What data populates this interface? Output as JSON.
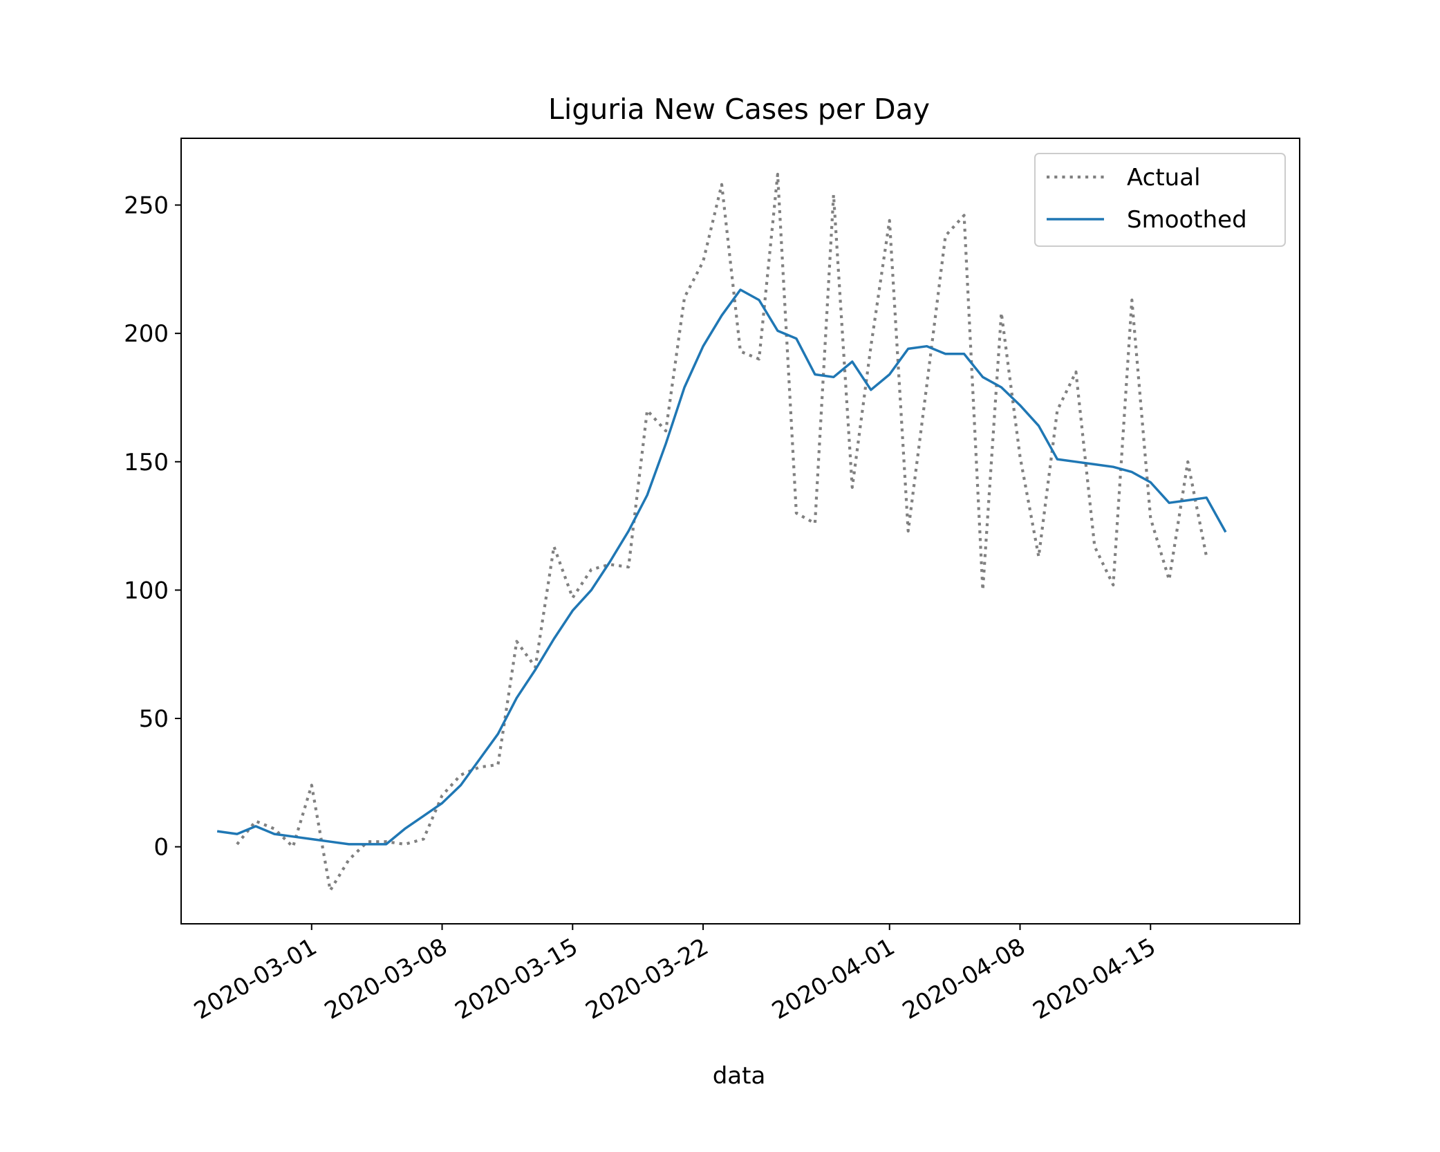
{
  "chart_data": {
    "type": "line",
    "title": "Liguria New Cases per Day",
    "xlabel": "data",
    "ylabel": "",
    "x_type": "date",
    "xlim": [
      "2020-02-23",
      "2020-04-23"
    ],
    "ylim": [
      -30,
      276
    ],
    "y_ticks": [
      0,
      50,
      100,
      150,
      200,
      250
    ],
    "x_ticks": [
      "2020-03-01",
      "2020-03-08",
      "2020-03-15",
      "2020-03-22",
      "2020-04-01",
      "2020-04-08",
      "2020-04-15"
    ],
    "grid": false,
    "legend_position": "top-right",
    "x": [
      "2020-02-25",
      "2020-02-26",
      "2020-02-27",
      "2020-02-28",
      "2020-02-29",
      "2020-03-01",
      "2020-03-02",
      "2020-03-03",
      "2020-03-04",
      "2020-03-05",
      "2020-03-06",
      "2020-03-07",
      "2020-03-08",
      "2020-03-09",
      "2020-03-10",
      "2020-03-11",
      "2020-03-12",
      "2020-03-13",
      "2020-03-14",
      "2020-03-15",
      "2020-03-16",
      "2020-03-17",
      "2020-03-18",
      "2020-03-19",
      "2020-03-20",
      "2020-03-21",
      "2020-03-22",
      "2020-03-23",
      "2020-03-24",
      "2020-03-25",
      "2020-03-26",
      "2020-03-27",
      "2020-03-28",
      "2020-03-29",
      "2020-03-30",
      "2020-03-31",
      "2020-04-01",
      "2020-04-02",
      "2020-04-03",
      "2020-04-04",
      "2020-04-05",
      "2020-04-06",
      "2020-04-07",
      "2020-04-08",
      "2020-04-09",
      "2020-04-10",
      "2020-04-11",
      "2020-04-12",
      "2020-04-13",
      "2020-04-14",
      "2020-04-15",
      "2020-04-16",
      "2020-04-17",
      "2020-04-18",
      "2020-04-19",
      "2020-04-20"
    ],
    "series": [
      {
        "name": "Actual",
        "style": "dotted",
        "color": "#808080",
        "values": [
          null,
          1,
          10,
          7,
          0,
          24,
          -17,
          -5,
          2,
          2,
          1,
          3,
          20,
          28,
          31,
          32,
          80,
          70,
          117,
          97,
          108,
          110,
          109,
          170,
          162,
          214,
          228,
          258,
          193,
          190,
          262,
          130,
          126,
          254,
          140,
          195,
          244,
          123,
          180,
          238,
          246,
          100,
          208,
          152,
          113,
          170,
          185,
          117,
          102,
          213,
          128,
          104,
          150,
          113,
          null,
          null
        ]
      },
      {
        "name": "Smoothed",
        "style": "solid",
        "color": "#1f77b4",
        "values": [
          6,
          5,
          8,
          5,
          4,
          3,
          2,
          1,
          1,
          1,
          7,
          12,
          17,
          24,
          34,
          44,
          58,
          69,
          81,
          92,
          100,
          111,
          123,
          137,
          157,
          179,
          195,
          207,
          217,
          213,
          201,
          198,
          184,
          183,
          189,
          178,
          184,
          194,
          195,
          192,
          192,
          183,
          179,
          172,
          164,
          151,
          150,
          149,
          148,
          146,
          142,
          134,
          135,
          136,
          123,
          null
        ]
      }
    ]
  }
}
